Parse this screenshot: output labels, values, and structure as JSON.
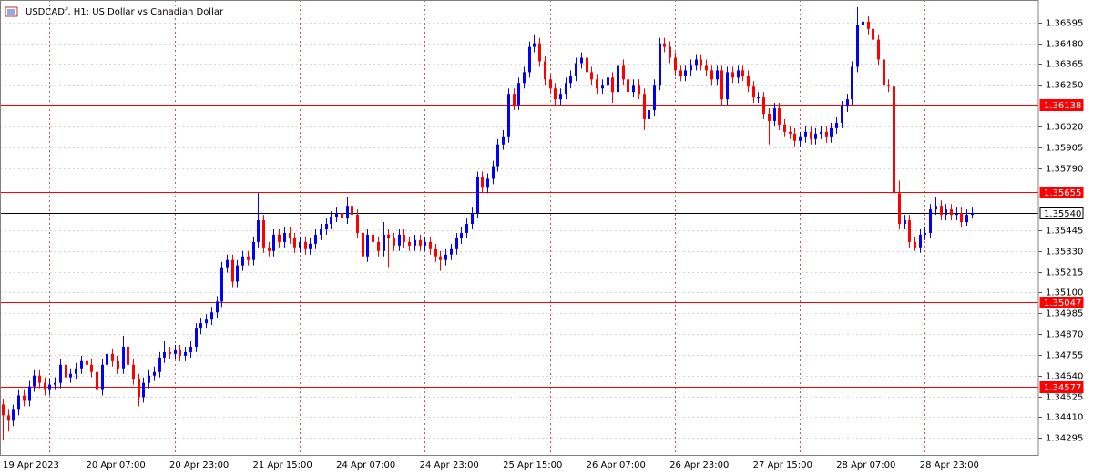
{
  "chart_data": {
    "type": "candlestick",
    "title": "USDCADf, H1:  US Dollar vs Canadian Dollar",
    "categories": [
      "19 Apr 2023",
      null,
      null,
      null,
      null,
      null,
      null,
      null,
      null,
      null,
      null,
      null,
      null,
      null,
      null,
      null,
      "20 Apr 07:00",
      null,
      null,
      null,
      null,
      null,
      null,
      null,
      null,
      null,
      null,
      null,
      null,
      null,
      null,
      null,
      "20 Apr 23:00",
      null,
      null,
      null,
      null,
      null,
      null,
      null,
      null,
      null,
      null,
      null,
      null,
      null,
      null,
      null,
      "21 Apr 15:00",
      null,
      null,
      null,
      null,
      null,
      null,
      null,
      null,
      null,
      null,
      null,
      null,
      null,
      null,
      null,
      "24 Apr 07:00",
      null,
      null,
      null,
      null,
      null,
      null,
      null,
      null,
      null,
      null,
      null,
      null,
      null,
      null,
      null,
      "24 Apr 23:00",
      null,
      null,
      null,
      null,
      null,
      null,
      null,
      null,
      null,
      null,
      null,
      null,
      null,
      null,
      null,
      "25 Apr 15:00",
      null,
      null,
      null,
      null,
      null,
      null,
      null,
      null,
      null,
      null,
      null,
      null,
      null,
      null,
      null,
      "26 Apr 07:00",
      null,
      null,
      null,
      null,
      null,
      null,
      null,
      null,
      null,
      null,
      null,
      null,
      null,
      null,
      null,
      "26 Apr 23:00",
      null,
      null,
      null,
      null,
      null,
      null,
      null,
      null,
      null,
      null,
      null,
      null,
      null,
      null,
      null,
      "27 Apr 15:00",
      null,
      null,
      null,
      null,
      null,
      null,
      null,
      null,
      null,
      null,
      null,
      null,
      null,
      null,
      null,
      "28 Apr 07:00",
      null,
      null,
      null,
      null,
      null,
      null,
      null,
      null,
      null,
      null,
      null,
      null,
      null,
      null,
      null,
      "28 Apr 23:00",
      null,
      null,
      null,
      null,
      null,
      null,
      null,
      null,
      null,
      null
    ],
    "open": [
      1.3448,
      1.3442,
      1.3439,
      1.3445,
      1.3453,
      1.345,
      1.3458,
      1.3464,
      1.346,
      1.3456,
      1.3459,
      1.346,
      1.347,
      1.3463,
      1.3465,
      1.3468,
      1.3472,
      1.347,
      1.3466,
      1.3456,
      1.347,
      1.3476,
      1.3472,
      1.3468,
      1.348,
      1.347,
      1.3462,
      1.3452,
      1.346,
      1.3464,
      1.3466,
      1.3474,
      1.3477,
      1.3476,
      1.3478,
      1.3475,
      1.3477,
      1.348,
      1.349,
      1.3493,
      1.3495,
      1.3499,
      1.3505,
      1.3524,
      1.3528,
      1.3516,
      1.3525,
      1.353,
      1.3528,
      1.3538,
      1.355,
      1.3535,
      1.3533,
      1.3542,
      1.3538,
      1.3543,
      1.354,
      1.3535,
      1.3538,
      1.3534,
      1.3537,
      1.3542,
      1.3545,
      1.3548,
      1.3552,
      1.3554,
      1.3551,
      1.3558,
      1.3553,
      1.3543,
      1.353,
      1.3542,
      1.3538,
      1.3533,
      1.3542,
      1.354,
      1.3536,
      1.3542,
      1.3538,
      1.3536,
      1.3539,
      1.3536,
      1.3538,
      1.3534,
      1.353,
      1.3528,
      1.3531,
      1.3534,
      1.354,
      1.3543,
      1.3548,
      1.3554,
      1.3574,
      1.3568,
      1.3573,
      1.358,
      1.3592,
      1.3596,
      1.362,
      1.3614,
      1.3626,
      1.3632,
      1.3646,
      1.3648,
      1.3638,
      1.3628,
      1.3623,
      1.3617,
      1.362,
      1.3626,
      1.363,
      1.3637,
      1.364,
      1.3632,
      1.3628,
      1.3623,
      1.3625,
      1.3629,
      1.3621,
      1.3636,
      1.3628,
      1.3621,
      1.3625,
      1.362,
      1.3606,
      1.3611,
      1.3625,
      1.3648,
      1.3646,
      1.364,
      1.3633,
      1.363,
      1.3633,
      1.3636,
      1.3639,
      1.3636,
      1.3633,
      1.3628,
      1.3633,
      1.3617,
      1.3632,
      1.3629,
      1.3633,
      1.363,
      1.3624,
      1.3618,
      1.3618,
      1.3609,
      1.3605,
      1.3612,
      1.3603,
      1.3599,
      1.3598,
      1.3594,
      1.3596,
      1.3599,
      1.3595,
      1.3598,
      1.3599,
      1.3596,
      1.3601,
      1.3604,
      1.3613,
      1.3617,
      1.3635,
      1.3658,
      1.366,
      1.3656,
      1.365,
      1.3639,
      1.3625,
      1.3624,
      1.3565,
      1.3548,
      1.355,
      1.3538,
      1.3535,
      1.3542,
      1.3543,
      1.3556,
      1.3558,
      1.3553,
      1.3556,
      1.3553,
      1.3554,
      1.3549,
      1.3553
    ],
    "high": [
      1.3451,
      1.3445,
      1.3448,
      1.3456,
      1.3456,
      1.3461,
      1.3467,
      1.3467,
      1.3463,
      1.3462,
      1.3463,
      1.3473,
      1.3473,
      1.3468,
      1.3471,
      1.3475,
      1.3475,
      1.3473,
      1.3469,
      1.3473,
      1.3479,
      1.3479,
      1.3475,
      1.3486,
      1.3483,
      1.3473,
      1.3465,
      1.3463,
      1.3467,
      1.3469,
      1.3477,
      1.3483,
      1.348,
      1.3481,
      1.3481,
      1.348,
      1.3483,
      1.3493,
      1.3496,
      1.3498,
      1.3502,
      1.3508,
      1.3527,
      1.3531,
      1.3531,
      1.3528,
      1.3533,
      1.3533,
      1.3541,
      1.3565,
      1.3553,
      1.3538,
      1.3545,
      1.3545,
      1.3546,
      1.3546,
      1.3543,
      1.3541,
      1.3541,
      1.354,
      1.3545,
      1.3548,
      1.3551,
      1.3555,
      1.3557,
      1.3557,
      1.3563,
      1.3561,
      1.3556,
      1.3546,
      1.3545,
      1.3545,
      1.3541,
      1.3549,
      1.3545,
      1.3543,
      1.3545,
      1.3545,
      1.3541,
      1.3542,
      1.3542,
      1.3541,
      1.3541,
      1.3537,
      1.3533,
      1.3534,
      1.3537,
      1.3543,
      1.3546,
      1.3551,
      1.3557,
      1.3577,
      1.3577,
      1.3576,
      1.3583,
      1.3595,
      1.36,
      1.3623,
      1.3623,
      1.3629,
      1.3635,
      1.3649,
      1.3653,
      1.3651,
      1.3641,
      1.3631,
      1.3626,
      1.3623,
      1.3629,
      1.3633,
      1.364,
      1.3643,
      1.3643,
      1.3635,
      1.3631,
      1.3628,
      1.3632,
      1.3632,
      1.3639,
      1.3639,
      1.3631,
      1.3628,
      1.3628,
      1.3623,
      1.3614,
      1.3628,
      1.3651,
      1.3651,
      1.3649,
      1.3643,
      1.3636,
      1.3636,
      1.3639,
      1.3642,
      1.3642,
      1.3639,
      1.3636,
      1.3636,
      1.3636,
      1.3635,
      1.3635,
      1.3636,
      1.3636,
      1.3633,
      1.3627,
      1.3621,
      1.3621,
      1.3612,
      1.3615,
      1.3615,
      1.3606,
      1.3602,
      1.3601,
      1.3599,
      1.3602,
      1.3602,
      1.3601,
      1.3602,
      1.3602,
      1.3604,
      1.3607,
      1.3616,
      1.362,
      1.3638,
      1.3668,
      1.3665,
      1.3663,
      1.3659,
      1.3653,
      1.3642,
      1.3628,
      1.3627,
      1.3572,
      1.3553,
      1.3553,
      1.3541,
      1.3545,
      1.3546,
      1.3559,
      1.3563,
      1.3561,
      1.3559,
      1.3559,
      1.3557,
      1.3557,
      1.3556,
      1.3557
    ],
    "low": [
      1.3428,
      1.3433,
      1.3436,
      1.3442,
      1.3447,
      1.3447,
      1.3455,
      1.3457,
      1.3453,
      1.3453,
      1.3456,
      1.3457,
      1.346,
      1.346,
      1.3462,
      1.3465,
      1.3467,
      1.3463,
      1.345,
      1.3453,
      1.3467,
      1.3469,
      1.3465,
      1.3465,
      1.3467,
      1.3459,
      1.3447,
      1.3449,
      1.3457,
      1.3461,
      1.3463,
      1.3471,
      1.3473,
      1.3473,
      1.3472,
      1.3472,
      1.3474,
      1.3477,
      1.3487,
      1.349,
      1.3492,
      1.3496,
      1.3502,
      1.3521,
      1.3513,
      1.3513,
      1.3522,
      1.3525,
      1.3525,
      1.3535,
      1.3532,
      1.353,
      1.353,
      1.3535,
      1.3535,
      1.3537,
      1.3532,
      1.3532,
      1.3531,
      1.3531,
      1.3534,
      1.3539,
      1.3542,
      1.3545,
      1.3549,
      1.3548,
      1.3548,
      1.355,
      1.354,
      1.3522,
      1.3527,
      1.3535,
      1.353,
      1.353,
      1.3524,
      1.3533,
      1.3533,
      1.3535,
      1.3533,
      1.3533,
      1.3533,
      1.3533,
      1.3531,
      1.3527,
      1.3522,
      1.3525,
      1.3528,
      1.3531,
      1.3537,
      1.354,
      1.3545,
      1.3551,
      1.3565,
      1.3565,
      1.357,
      1.3577,
      1.3589,
      1.3593,
      1.3611,
      1.3611,
      1.3623,
      1.3629,
      1.3643,
      1.3635,
      1.3625,
      1.362,
      1.3614,
      1.3614,
      1.3617,
      1.3623,
      1.3627,
      1.3634,
      1.3629,
      1.3625,
      1.362,
      1.362,
      1.3622,
      1.3615,
      1.3618,
      1.3625,
      1.3615,
      1.3618,
      1.3617,
      1.36,
      1.3603,
      1.3608,
      1.3622,
      1.3643,
      1.3637,
      1.363,
      1.3627,
      1.3627,
      1.363,
      1.3633,
      1.3633,
      1.363,
      1.3625,
      1.3625,
      1.3614,
      1.3614,
      1.3626,
      1.3626,
      1.3627,
      1.3621,
      1.3615,
      1.3615,
      1.3606,
      1.3592,
      1.3602,
      1.36,
      1.3596,
      1.3595,
      1.3591,
      1.3591,
      1.3593,
      1.3592,
      1.3592,
      1.3595,
      1.3593,
      1.3593,
      1.3598,
      1.3601,
      1.361,
      1.3614,
      1.3632,
      1.3655,
      1.3653,
      1.3647,
      1.3636,
      1.362,
      1.3621,
      1.3562,
      1.3545,
      1.3545,
      1.3535,
      1.3533,
      1.3532,
      1.3539,
      1.354,
      1.3553,
      1.355,
      1.355,
      1.355,
      1.355,
      1.3546,
      1.3547,
      1.3551
    ],
    "close": [
      1.3442,
      1.3439,
      1.3445,
      1.3453,
      1.345,
      1.3458,
      1.3464,
      1.346,
      1.3456,
      1.3459,
      1.346,
      1.347,
      1.3463,
      1.3465,
      1.3468,
      1.3472,
      1.347,
      1.3466,
      1.3456,
      1.347,
      1.3476,
      1.3472,
      1.3468,
      1.348,
      1.347,
      1.3462,
      1.3452,
      1.346,
      1.3464,
      1.3466,
      1.3474,
      1.3477,
      1.3476,
      1.3478,
      1.3475,
      1.3477,
      1.348,
      1.349,
      1.3493,
      1.3495,
      1.3499,
      1.3505,
      1.3524,
      1.3528,
      1.3516,
      1.3525,
      1.353,
      1.3528,
      1.3538,
      1.355,
      1.3535,
      1.3533,
      1.3542,
      1.3538,
      1.3543,
      1.354,
      1.3535,
      1.3538,
      1.3534,
      1.3537,
      1.3542,
      1.3545,
      1.3548,
      1.3552,
      1.3554,
      1.3551,
      1.3558,
      1.3553,
      1.3543,
      1.353,
      1.3542,
      1.3538,
      1.3533,
      1.3542,
      1.354,
      1.3536,
      1.3542,
      1.3538,
      1.3536,
      1.3539,
      1.3536,
      1.3538,
      1.3534,
      1.353,
      1.3528,
      1.3531,
      1.3534,
      1.354,
      1.3543,
      1.3548,
      1.3554,
      1.3574,
      1.3568,
      1.3573,
      1.358,
      1.3592,
      1.3596,
      1.362,
      1.3614,
      1.3626,
      1.3632,
      1.3646,
      1.3648,
      1.3638,
      1.3628,
      1.3623,
      1.3617,
      1.362,
      1.3626,
      1.363,
      1.3637,
      1.364,
      1.3632,
      1.3628,
      1.3623,
      1.3625,
      1.3629,
      1.3621,
      1.3636,
      1.3628,
      1.3621,
      1.3625,
      1.362,
      1.3606,
      1.3611,
      1.3625,
      1.3648,
      1.3646,
      1.364,
      1.3633,
      1.363,
      1.3633,
      1.3636,
      1.3639,
      1.3636,
      1.3633,
      1.3628,
      1.3633,
      1.3617,
      1.3632,
      1.3629,
      1.3633,
      1.363,
      1.3624,
      1.3618,
      1.3618,
      1.3609,
      1.3605,
      1.3612,
      1.3603,
      1.3599,
      1.3598,
      1.3594,
      1.3596,
      1.3599,
      1.3595,
      1.3598,
      1.3599,
      1.3596,
      1.3601,
      1.3604,
      1.3613,
      1.3617,
      1.3635,
      1.3658,
      1.366,
      1.3656,
      1.365,
      1.3639,
      1.3625,
      1.3624,
      1.3565,
      1.3548,
      1.355,
      1.3538,
      1.3535,
      1.3542,
      1.3543,
      1.3556,
      1.3558,
      1.3553,
      1.3556,
      1.3553,
      1.3554,
      1.3549,
      1.3553,
      1.3554
    ],
    "up_color": "#0000ff",
    "down_color": "#ff0000",
    "ylim": [
      1.342,
      1.3672
    ],
    "yticks": [
      1.36595,
      {
        "value": 1.3648,
        "label": "1.36480"
      },
      1.36365,
      {
        "value": 1.3625,
        "label": "1.36250"
      },
      {
        "value": 1.3602,
        "label": "1.36020"
      },
      1.35905,
      {
        "value": 1.3579,
        "label": "1.35790"
      },
      1.35445,
      {
        "value": 1.3533,
        "label": "1.35330"
      },
      1.35215,
      {
        "value": 1.351,
        "label": "1.35100"
      },
      1.34985,
      {
        "value": 1.3487,
        "label": "1.34870"
      },
      1.34755,
      {
        "value": 1.3464,
        "label": "1.34640"
      },
      1.34525,
      {
        "value": 1.3441,
        "label": "1.34410"
      },
      1.34295
    ],
    "grid": true,
    "levels": [
      {
        "value": 1.36138,
        "color": "#ff0000"
      },
      {
        "value": 1.35655,
        "color": "#ff0000"
      },
      {
        "value": 1.3554,
        "label": "1.35540",
        "color": "#000000"
      },
      {
        "value": 1.35047,
        "color": "#ff0000"
      },
      {
        "value": 1.34577,
        "color": "#ff0000"
      }
    ]
  }
}
